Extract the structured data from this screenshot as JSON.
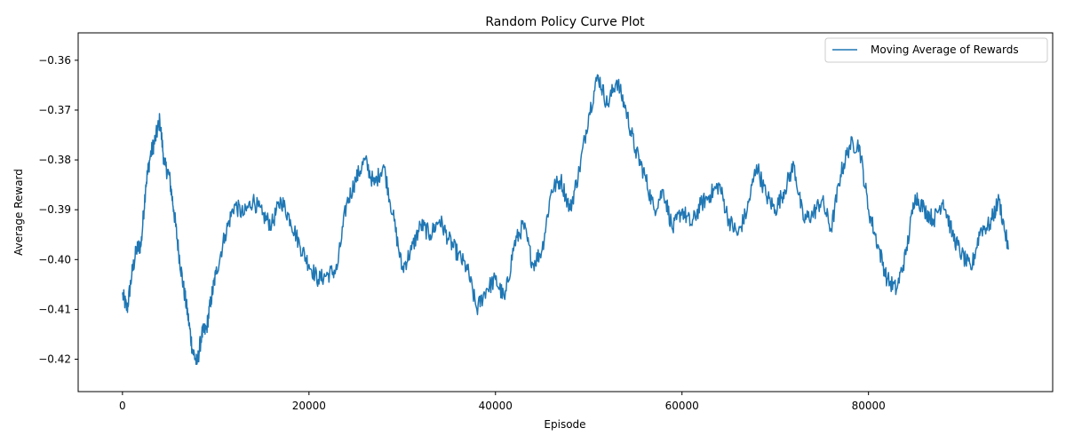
{
  "chart_data": {
    "type": "line",
    "title": "Random Policy Curve Plot",
    "xlabel": "Episode",
    "ylabel": "Average Reward",
    "xlim": [
      -4750,
      99750
    ],
    "ylim": [
      -0.4265,
      -0.3545
    ],
    "xticks": [
      0,
      20000,
      40000,
      60000,
      80000
    ],
    "xtick_labels": [
      "0",
      "20000",
      "40000",
      "60000",
      "80000"
    ],
    "yticks": [
      -0.42,
      -0.41,
      -0.4,
      -0.39,
      -0.38,
      -0.37,
      -0.36
    ],
    "ytick_labels": [
      "−0.42",
      "−0.41",
      "−0.40",
      "−0.39",
      "−0.38",
      "−0.37",
      "−0.36"
    ],
    "grid": false,
    "legend_position": "top-right",
    "series": [
      {
        "name": "Moving Average of Rewards",
        "color": "#1f77b4",
        "x": [
          0,
          500,
          1000,
          1500,
          2000,
          2500,
          3000,
          3500,
          4000,
          4500,
          5000,
          5500,
          6000,
          6500,
          7000,
          7500,
          8000,
          8500,
          9000,
          9500,
          10000,
          11000,
          12000,
          13000,
          14000,
          15000,
          16000,
          17000,
          18000,
          19000,
          20000,
          21000,
          22000,
          23000,
          24000,
          25000,
          26000,
          27000,
          28000,
          29000,
          30000,
          31000,
          32000,
          33000,
          34000,
          35000,
          36000,
          37000,
          38000,
          39000,
          40000,
          41000,
          42000,
          43000,
          44000,
          45000,
          46000,
          47000,
          48000,
          49000,
          50000,
          51000,
          52000,
          53000,
          54000,
          55000,
          56000,
          57000,
          58000,
          59000,
          60000,
          61000,
          62000,
          63000,
          64000,
          65000,
          66000,
          67000,
          68000,
          69000,
          70000,
          71000,
          72000,
          73000,
          74000,
          75000,
          76000,
          77000,
          78000,
          79000,
          80000,
          81000,
          82000,
          83000,
          84000,
          85000,
          86000,
          87000,
          88000,
          89000,
          90000,
          91000,
          92000,
          93000,
          94000,
          95000
        ],
        "values": [
          -0.407,
          -0.41,
          -0.403,
          -0.398,
          -0.397,
          -0.385,
          -0.379,
          -0.376,
          -0.372,
          -0.381,
          -0.383,
          -0.39,
          -0.398,
          -0.405,
          -0.411,
          -0.418,
          -0.421,
          -0.415,
          -0.414,
          -0.408,
          -0.403,
          -0.395,
          -0.389,
          -0.391,
          -0.388,
          -0.391,
          -0.393,
          -0.388,
          -0.392,
          -0.397,
          -0.401,
          -0.404,
          -0.403,
          -0.402,
          -0.389,
          -0.384,
          -0.38,
          -0.385,
          -0.381,
          -0.391,
          -0.402,
          -0.398,
          -0.393,
          -0.395,
          -0.392,
          -0.396,
          -0.399,
          -0.402,
          -0.41,
          -0.406,
          -0.404,
          -0.408,
          -0.397,
          -0.393,
          -0.401,
          -0.398,
          -0.386,
          -0.384,
          -0.39,
          -0.382,
          -0.371,
          -0.363,
          -0.369,
          -0.364,
          -0.37,
          -0.378,
          -0.383,
          -0.39,
          -0.386,
          -0.394,
          -0.39,
          -0.393,
          -0.389,
          -0.387,
          -0.385,
          -0.392,
          -0.395,
          -0.39,
          -0.381,
          -0.387,
          -0.39,
          -0.386,
          -0.381,
          -0.392,
          -0.391,
          -0.388,
          -0.394,
          -0.383,
          -0.377,
          -0.377,
          -0.39,
          -0.397,
          -0.404,
          -0.406,
          -0.399,
          -0.387,
          -0.39,
          -0.392,
          -0.388,
          -0.395,
          -0.399,
          -0.402,
          -0.394,
          -0.393,
          -0.388,
          -0.398
        ]
      }
    ]
  }
}
